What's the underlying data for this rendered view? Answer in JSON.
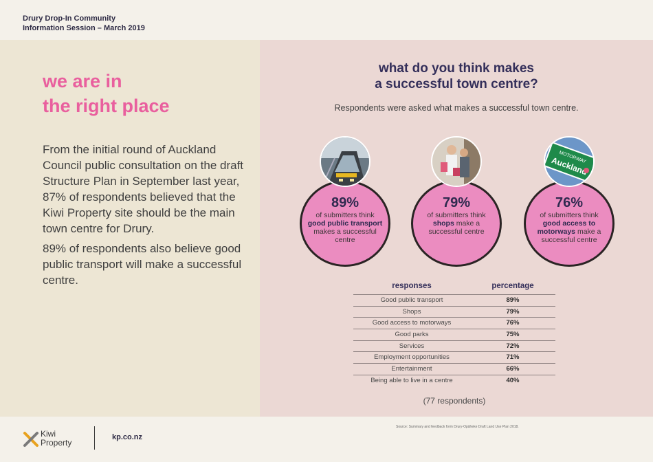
{
  "header": {
    "title": "Drury Drop-In Community\nInformation Session – March 2019"
  },
  "left": {
    "headline": "we are in\nthe right place",
    "paragraphs": [
      "From the initial round of Auckland Council public consultation on the draft Structure Plan in September last year, 87% of respondents believed that the Kiwi Property site should be the main town centre for Drury.",
      "89% of respondents also believe good public transport will make a successful centre."
    ]
  },
  "right": {
    "title": "what do you think makes\na successful town centre?",
    "subtitle": "Respondents were asked what makes a successful town centre.",
    "stats": [
      {
        "pct": "89%",
        "pre": "of submitters think ",
        "bold": "good public transport",
        "post": " makes a successful centre",
        "image": "train"
      },
      {
        "pct": "79%",
        "pre": "of submitters think ",
        "bold": "shops",
        "post": " make a successful centre",
        "image": "shoppers"
      },
      {
        "pct": "76%",
        "pre": "of submitters think ",
        "bold": "good access to motorways",
        "post": " make a successful centre",
        "image": "motorway-sign"
      }
    ],
    "table": {
      "headers": [
        "responses",
        "percentage"
      ],
      "rows": [
        [
          "Good public transport",
          "89%"
        ],
        [
          "Shops",
          "79%"
        ],
        [
          "Good access to motorways",
          "76%"
        ],
        [
          "Good parks",
          "75%"
        ],
        [
          "Services",
          "72%"
        ],
        [
          "Employment opportunities",
          "71%"
        ],
        [
          "Entertainment",
          "66%"
        ],
        [
          "Being able to live in a centre",
          "40%"
        ]
      ]
    },
    "respondents": "(77 respondents)",
    "sign_text": {
      "line1": "MOTORWAY",
      "line2": "Auckland"
    }
  },
  "footer": {
    "source": "Source: Summary and feedback form Drury-Opāheke Draft Land Use Plan 2018.",
    "brand": "Kiwi\nProperty",
    "website": "kp.co.nz"
  },
  "colors": {
    "pink": "#e95f9e",
    "bubble": "#eb8cc0",
    "navy": "#342f5a",
    "left_bg": "#ede6d4",
    "right_bg": "#ebd8d4"
  }
}
